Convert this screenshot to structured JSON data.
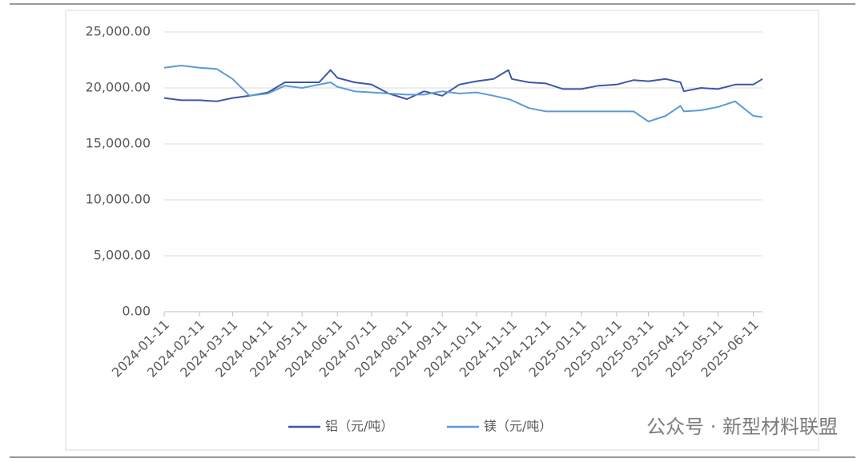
{
  "chart_data": {
    "type": "line",
    "x": [
      "2024-01-11",
      "2024-01-26",
      "2024-02-11",
      "2024-02-26",
      "2024-03-11",
      "2024-03-26",
      "2024-04-11",
      "2024-04-26",
      "2024-05-11",
      "2024-05-26",
      "2024-06-05",
      "2024-06-11",
      "2024-06-26",
      "2024-07-11",
      "2024-07-26",
      "2024-08-11",
      "2024-08-26",
      "2024-09-11",
      "2024-09-26",
      "2024-10-11",
      "2024-10-26",
      "2024-11-08",
      "2024-11-11",
      "2024-11-26",
      "2024-12-11",
      "2024-12-26",
      "2025-01-11",
      "2025-01-26",
      "2025-02-11",
      "2025-02-26",
      "2025-03-11",
      "2025-03-26",
      "2025-04-08",
      "2025-04-11",
      "2025-04-26",
      "2025-05-11",
      "2025-05-26",
      "2025-06-11",
      "2025-06-19"
    ],
    "series": [
      {
        "name": "铝（元/吨）",
        "color": "#3f57a6",
        "values": [
          19100,
          18900,
          18900,
          18800,
          19100,
          19300,
          19600,
          20500,
          20500,
          20500,
          21600,
          20900,
          20500,
          20300,
          19500,
          19000,
          19700,
          19300,
          20300,
          20600,
          20800,
          21600,
          20800,
          20500,
          20400,
          19900,
          19900,
          20200,
          20300,
          20700,
          20600,
          20800,
          20500,
          19700,
          20000,
          19900,
          20300,
          20300,
          20800
        ]
      },
      {
        "name": "镁（元/吨）",
        "color": "#5b9bd5",
        "values": [
          21800,
          22000,
          21800,
          21700,
          20800,
          19300,
          19500,
          20200,
          20000,
          20300,
          20500,
          20100,
          19700,
          19600,
          19500,
          19400,
          19400,
          19700,
          19500,
          19600,
          19300,
          19000,
          18900,
          18200,
          17900,
          17900,
          17900,
          17900,
          17900,
          17900,
          17000,
          17500,
          18400,
          17900,
          18000,
          18300,
          18800,
          17500,
          17400
        ]
      }
    ],
    "xlim": [
      "2024-01-11",
      "2025-06-19"
    ],
    "xticks": [
      "2024-01-11",
      "2024-02-11",
      "2024-03-11",
      "2024-04-11",
      "2024-05-11",
      "2024-06-11",
      "2024-07-11",
      "2024-08-11",
      "2024-09-11",
      "2024-10-11",
      "2024-11-11",
      "2024-12-11",
      "2025-01-11",
      "2025-02-11",
      "2025-03-11",
      "2025-04-11",
      "2025-05-11",
      "2025-06-11"
    ],
    "ylim": [
      0,
      25000
    ],
    "yticks": [
      {
        "value": 0,
        "label": "0.00"
      },
      {
        "value": 5000,
        "label": "5,000.00"
      },
      {
        "value": 10000,
        "label": "10,000.00"
      },
      {
        "value": 15000,
        "label": "15,000.00"
      },
      {
        "value": 20000,
        "label": "20,000.00"
      },
      {
        "value": 25000,
        "label": "25,000.00"
      }
    ],
    "grid": true,
    "legend": "bottom",
    "watermark": "公众号 · 新型材料联盟"
  }
}
